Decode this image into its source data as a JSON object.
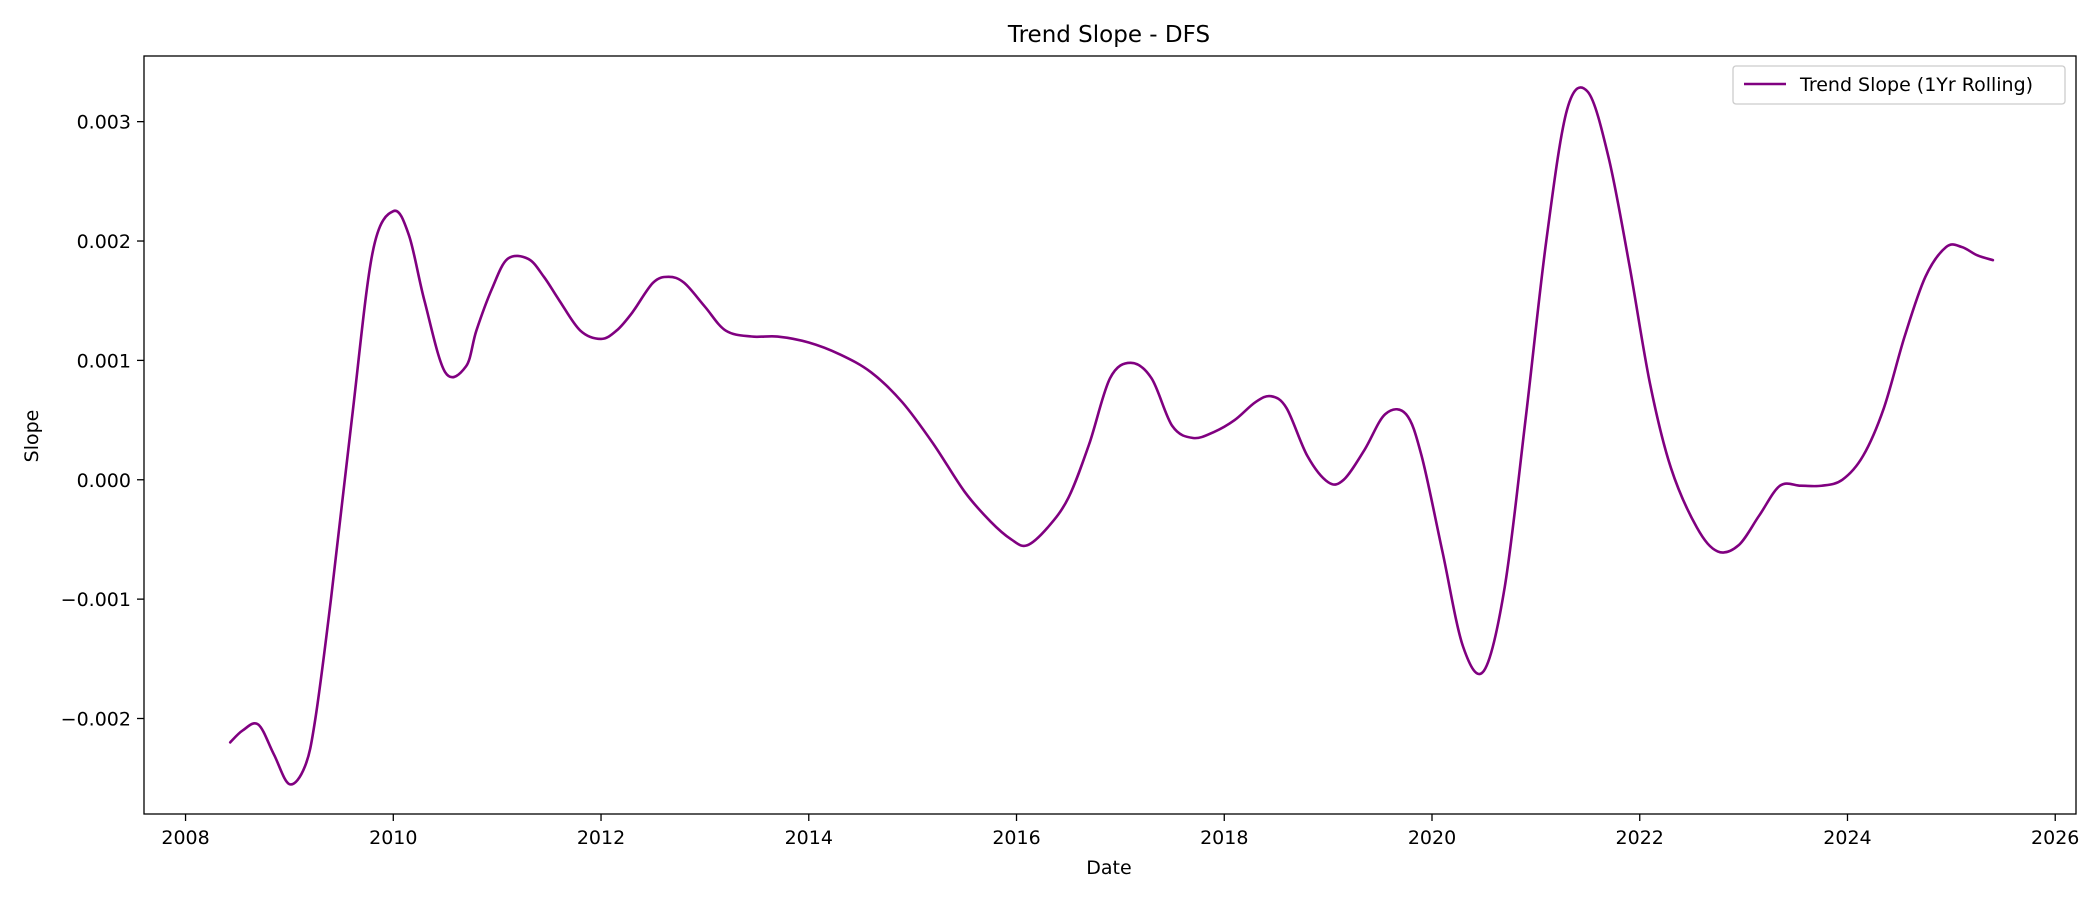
{
  "colors": {
    "series": "#800080",
    "axes": "#000000",
    "background": "#ffffff",
    "legend_border": "#cccccc"
  },
  "chart_data": {
    "type": "line",
    "title": "Trend Slope - DFS",
    "xlabel": "Date",
    "ylabel": "Slope",
    "xlim": [
      2007.6,
      2026.2
    ],
    "ylim": [
      -0.0028,
      0.00355
    ],
    "x_ticks": [
      2008,
      2010,
      2012,
      2014,
      2016,
      2018,
      2020,
      2022,
      2024,
      2026
    ],
    "x_tick_labels": [
      "2008",
      "2010",
      "2012",
      "2014",
      "2016",
      "2018",
      "2020",
      "2022",
      "2024",
      "2026"
    ],
    "y_ticks": [
      -0.002,
      -0.001,
      0.0,
      0.001,
      0.002,
      0.003
    ],
    "y_tick_labels": [
      "−0.002",
      "−0.001",
      "0.000",
      "0.001",
      "0.002",
      "0.003"
    ],
    "grid": false,
    "legend": {
      "placement": "top-right",
      "entries": [
        "Trend Slope (1Yr Rolling)"
      ]
    },
    "series": [
      {
        "name": "Trend Slope (1Yr Rolling)",
        "color": "#800080",
        "x": [
          2008.43,
          2008.55,
          2008.7,
          2008.85,
          2009.0,
          2009.15,
          2009.25,
          2009.4,
          2009.6,
          2009.8,
          2010.0,
          2010.15,
          2010.3,
          2010.5,
          2010.7,
          2010.8,
          2010.95,
          2011.1,
          2011.3,
          2011.45,
          2011.6,
          2011.8,
          2012.0,
          2012.15,
          2012.3,
          2012.5,
          2012.65,
          2012.8,
          2013.0,
          2013.2,
          2013.45,
          2013.7,
          2014.0,
          2014.3,
          2014.6,
          2014.9,
          2015.2,
          2015.5,
          2015.75,
          2015.95,
          2016.1,
          2016.3,
          2016.5,
          2016.7,
          2016.9,
          2017.1,
          2017.3,
          2017.5,
          2017.7,
          2017.9,
          2018.1,
          2018.3,
          2018.45,
          2018.6,
          2018.8,
          2019.0,
          2019.15,
          2019.35,
          2019.55,
          2019.75,
          2019.9,
          2020.1,
          2020.3,
          2020.5,
          2020.7,
          2020.9,
          2021.1,
          2021.3,
          2021.5,
          2021.7,
          2021.9,
          2022.1,
          2022.3,
          2022.55,
          2022.75,
          2022.95,
          2023.15,
          2023.35,
          2023.55,
          2023.75,
          2023.95,
          2024.15,
          2024.35,
          2024.55,
          2024.75,
          2024.95,
          2025.1,
          2025.25,
          2025.4
        ],
        "values": [
          -0.0022,
          -0.0021,
          -0.00205,
          -0.0023,
          -0.00255,
          -0.0024,
          -0.002,
          -0.001,
          0.0005,
          0.0019,
          0.00225,
          0.00205,
          0.0015,
          0.0009,
          0.00095,
          0.00125,
          0.0016,
          0.00185,
          0.00185,
          0.0017,
          0.0015,
          0.00125,
          0.00118,
          0.00125,
          0.0014,
          0.00165,
          0.0017,
          0.00165,
          0.00145,
          0.00125,
          0.0012,
          0.0012,
          0.00115,
          0.00105,
          0.0009,
          0.00065,
          0.0003,
          -0.0001,
          -0.00035,
          -0.0005,
          -0.00055,
          -0.0004,
          -0.00015,
          0.0003,
          0.00085,
          0.00098,
          0.00085,
          0.00045,
          0.00035,
          0.0004,
          0.0005,
          0.00065,
          0.0007,
          0.0006,
          0.0002,
          -2e-05,
          0.0,
          0.00025,
          0.00055,
          0.00055,
          0.0002,
          -0.0006,
          -0.0014,
          -0.0016,
          -0.0009,
          0.0005,
          0.002,
          0.0031,
          0.00325,
          0.0027,
          0.0018,
          0.0008,
          0.0001,
          -0.0004,
          -0.0006,
          -0.00055,
          -0.0003,
          -5e-05,
          -5e-05,
          -5e-05,
          0.0,
          0.0002,
          0.0006,
          0.0012,
          0.0017,
          0.00195,
          0.00195,
          0.00188,
          0.00184
        ]
      }
    ]
  }
}
